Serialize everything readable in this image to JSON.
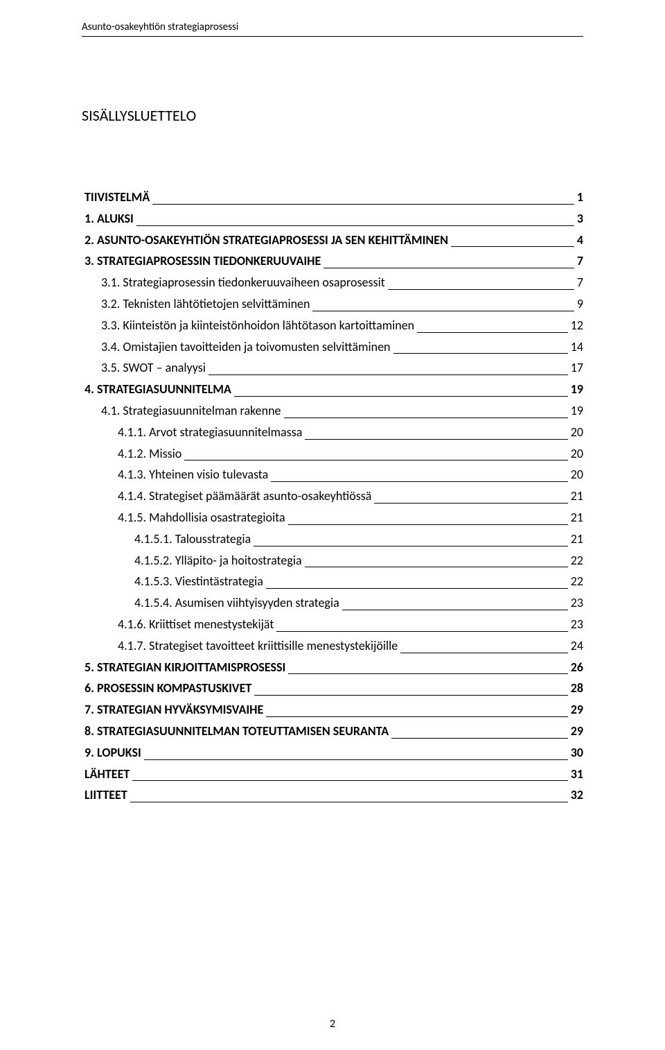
{
  "runningHeader": "Asunto-osakeyhtiön strategiaprosessi",
  "mainTitle": "SISÄLLYSLUETTELO",
  "pageNumber": "2",
  "toc": [
    {
      "label": "TIIVISTELMÄ",
      "page": "1",
      "level": 0,
      "bold": true
    },
    {
      "label": "1. ALUKSI",
      "page": "3",
      "level": 0,
      "bold": true
    },
    {
      "label": "2. ASUNTO-OSAKEYHTIÖN STRATEGIAPROSESSI JA SEN KEHITTÄMINEN",
      "page": "4",
      "level": 0,
      "bold": true
    },
    {
      "label": "3. STRATEGIAPROSESSIN TIEDONKERUUVAIHE",
      "page": "7",
      "level": 0,
      "bold": true
    },
    {
      "label": "3.1. Strategiaprosessin tiedonkeruuvaiheen osaprosessit",
      "page": "7",
      "level": 1,
      "bold": false
    },
    {
      "label": "3.2. Teknisten lähtötietojen selvittäminen",
      "page": "9",
      "level": 1,
      "bold": false
    },
    {
      "label": "3.3. Kiinteistön ja kiinteistönhoidon lähtötason kartoittaminen",
      "page": "12",
      "level": 1,
      "bold": false
    },
    {
      "label": "3.4. Omistajien tavoitteiden ja toivomusten selvittäminen",
      "page": "14",
      "level": 1,
      "bold": false
    },
    {
      "label": "3.5. SWOT – analyysi",
      "page": "17",
      "level": 1,
      "bold": false
    },
    {
      "label": "4. STRATEGIASUUNNITELMA",
      "page": "19",
      "level": 0,
      "bold": true
    },
    {
      "label": "4.1. Strategiasuunnitelman rakenne",
      "page": "19",
      "level": 1,
      "bold": false
    },
    {
      "label": "4.1.1. Arvot strategiasuunnitelmassa",
      "page": "20",
      "level": 2,
      "bold": false
    },
    {
      "label": "4.1.2. Missio",
      "page": "20",
      "level": 2,
      "bold": false
    },
    {
      "label": "4.1.3. Yhteinen visio tulevasta",
      "page": "20",
      "level": 2,
      "bold": false
    },
    {
      "label": "4.1.4. Strategiset päämäärät asunto-osakeyhtiössä",
      "page": "21",
      "level": 2,
      "bold": false
    },
    {
      "label": "4.1.5. Mahdollisia osastrategioita",
      "page": "21",
      "level": 2,
      "bold": false
    },
    {
      "label": "4.1.5.1.    Talousstrategia",
      "page": "21",
      "level": 3,
      "bold": false
    },
    {
      "label": "4.1.5.2.    Ylläpito- ja hoitostrategia",
      "page": "22",
      "level": 3,
      "bold": false
    },
    {
      "label": "4.1.5.3.    Viestintästrategia",
      "page": "22",
      "level": 3,
      "bold": false
    },
    {
      "label": "4.1.5.4.    Asumisen viihtyisyyden strategia",
      "page": "23",
      "level": 3,
      "bold": false
    },
    {
      "label": "4.1.6. Kriittiset menestystekijät",
      "page": "23",
      "level": 2,
      "bold": false
    },
    {
      "label": "4.1.7. Strategiset tavoitteet kriittisille menestystekijöille",
      "page": "24",
      "level": 2,
      "bold": false
    },
    {
      "label": "5. STRATEGIAN KIRJOITTAMISPROSESSI",
      "page": "26",
      "level": 0,
      "bold": true
    },
    {
      "label": "6. PROSESSIN KOMPASTUSKIVET",
      "page": "28",
      "level": 0,
      "bold": true
    },
    {
      "label": "7. STRATEGIAN HYVÄKSYMISVAIHE",
      "page": "29",
      "level": 0,
      "bold": true
    },
    {
      "label": "8. STRATEGIASUUNNITELMAN TOTEUTTAMISEN SEURANTA",
      "page": "29",
      "level": 0,
      "bold": true
    },
    {
      "label": "9. LOPUKSI",
      "page": "30",
      "level": 0,
      "bold": true
    },
    {
      "label": "LÄHTEET",
      "page": "31",
      "level": 0,
      "bold": true
    },
    {
      "label": "LIITTEET",
      "page": "32",
      "level": 0,
      "bold": true
    }
  ]
}
